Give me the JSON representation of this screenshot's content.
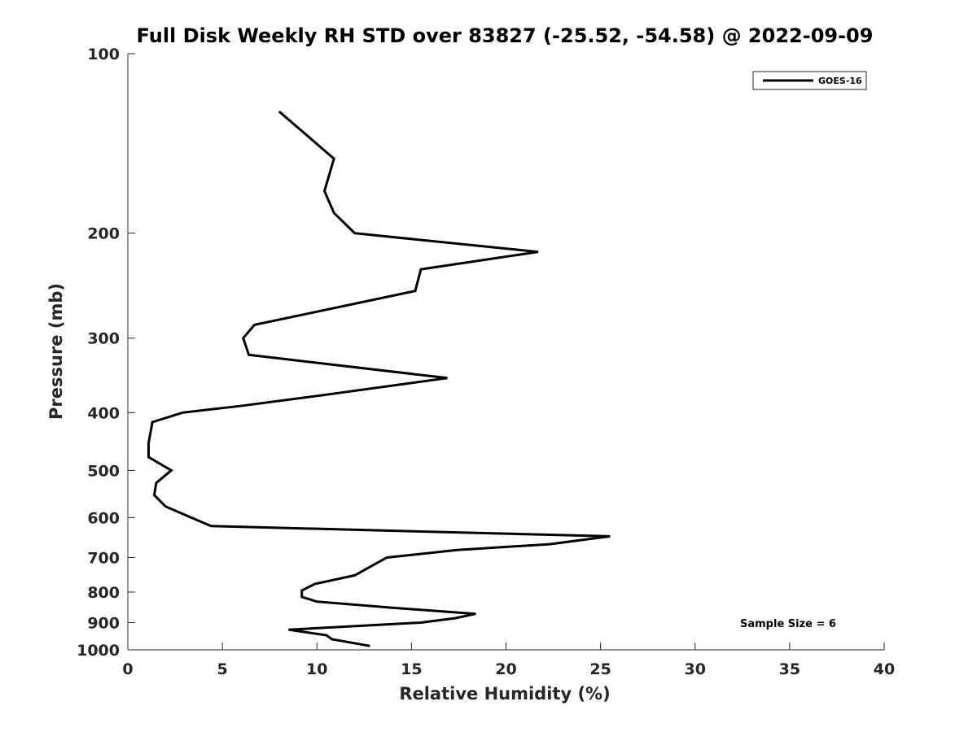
{
  "chart_data": {
    "type": "line",
    "title": "Full Disk Weekly RH STD over 83827 (-25.52, -54.58) @ 2022-09-09",
    "xlabel": "Relative Humidity (%)",
    "ylabel": "Pressure (mb)",
    "xlim": [
      0,
      40
    ],
    "ylim": [
      100,
      1000
    ],
    "yscale": "log",
    "y_reversed": true,
    "grid": false,
    "legend_position": "top-right",
    "x_ticks": [
      "0",
      "5",
      "10",
      "15",
      "20",
      "25",
      "30",
      "35",
      "40"
    ],
    "y_ticks": [
      "100",
      "200",
      "300",
      "400",
      "500",
      "600",
      "700",
      "800",
      "900",
      "1000"
    ],
    "annotation": "Sample Size = 6",
    "series": [
      {
        "name": "GOES-16",
        "color": "#000000",
        "points": [
          {
            "rh": 8.0,
            "p": 125
          },
          {
            "rh": 10.9,
            "p": 150
          },
          {
            "rh": 10.4,
            "p": 170
          },
          {
            "rh": 10.9,
            "p": 185
          },
          {
            "rh": 12.0,
            "p": 200
          },
          {
            "rh": 21.7,
            "p": 215
          },
          {
            "rh": 15.5,
            "p": 230
          },
          {
            "rh": 15.2,
            "p": 250
          },
          {
            "rh": 6.7,
            "p": 285
          },
          {
            "rh": 6.1,
            "p": 300
          },
          {
            "rh": 6.4,
            "p": 320
          },
          {
            "rh": 16.9,
            "p": 350
          },
          {
            "rh": 10.0,
            "p": 375
          },
          {
            "rh": 5.9,
            "p": 390
          },
          {
            "rh": 2.9,
            "p": 400
          },
          {
            "rh": 1.3,
            "p": 415
          },
          {
            "rh": 1.1,
            "p": 450
          },
          {
            "rh": 1.1,
            "p": 475
          },
          {
            "rh": 2.3,
            "p": 500
          },
          {
            "rh": 1.5,
            "p": 525
          },
          {
            "rh": 1.4,
            "p": 550
          },
          {
            "rh": 2.0,
            "p": 575
          },
          {
            "rh": 4.4,
            "p": 620
          },
          {
            "rh": 25.5,
            "p": 645
          },
          {
            "rh": 22.3,
            "p": 665
          },
          {
            "rh": 17.4,
            "p": 680
          },
          {
            "rh": 13.7,
            "p": 700
          },
          {
            "rh": 12.0,
            "p": 750
          },
          {
            "rh": 9.9,
            "p": 775
          },
          {
            "rh": 9.2,
            "p": 795
          },
          {
            "rh": 9.2,
            "p": 815
          },
          {
            "rh": 10.0,
            "p": 830
          },
          {
            "rh": 14.0,
            "p": 850
          },
          {
            "rh": 18.4,
            "p": 870
          },
          {
            "rh": 17.3,
            "p": 885
          },
          {
            "rh": 15.5,
            "p": 900
          },
          {
            "rh": 8.5,
            "p": 925
          },
          {
            "rh": 10.5,
            "p": 945
          },
          {
            "rh": 10.8,
            "p": 960
          },
          {
            "rh": 12.8,
            "p": 985
          }
        ]
      }
    ]
  }
}
